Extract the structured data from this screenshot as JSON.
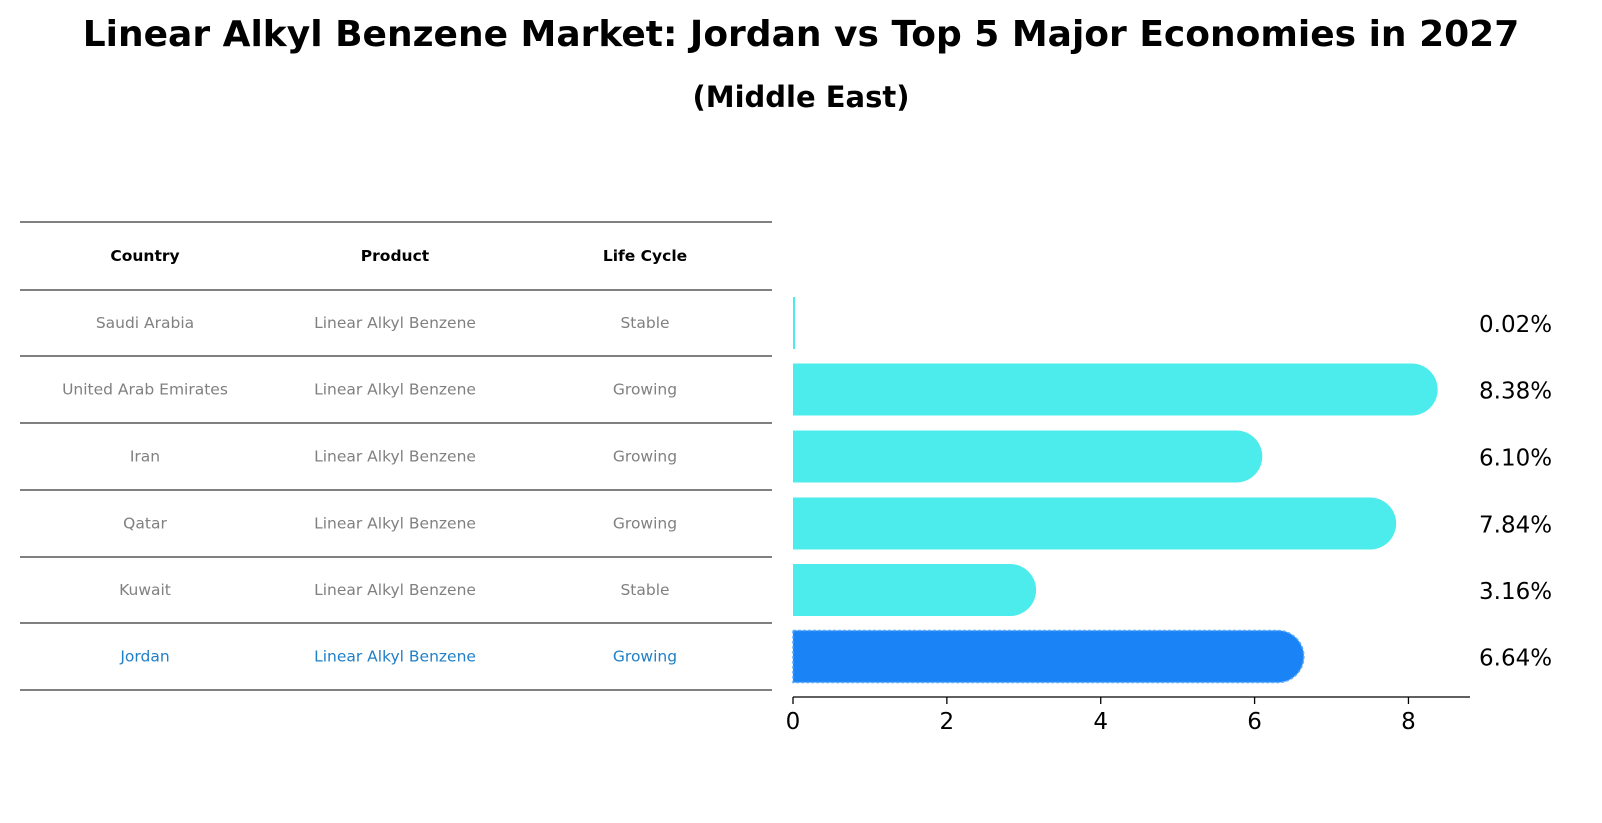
{
  "title": "Linear Alkyl Benzene Market: Jordan vs Top 5 Major Economies in 2027",
  "subtitle": "(Middle East)",
  "table": {
    "headers": [
      "Country",
      "Product",
      "Life Cycle"
    ],
    "rows": [
      {
        "country": "Saudi Arabia",
        "product": "Linear Alkyl Benzene",
        "life_cycle": "Stable"
      },
      {
        "country": "United Arab Emirates",
        "product": "Linear Alkyl Benzene",
        "life_cycle": "Growing"
      },
      {
        "country": "Iran",
        "product": "Linear Alkyl Benzene",
        "life_cycle": "Growing"
      },
      {
        "country": "Qatar",
        "product": "Linear Alkyl Benzene",
        "life_cycle": "Growing"
      },
      {
        "country": "Kuwait",
        "product": "Linear Alkyl Benzene",
        "life_cycle": "Stable"
      },
      {
        "country": "Jordan",
        "product": "Linear Alkyl Benzene",
        "life_cycle": "Growing"
      }
    ],
    "highlight_country": "Jordan"
  },
  "chart_data": {
    "type": "bar",
    "orientation": "horizontal",
    "categories": [
      "Saudi Arabia",
      "United Arab Emirates",
      "Iran",
      "Qatar",
      "Kuwait",
      "Jordan"
    ],
    "values": [
      0.02,
      8.38,
      6.1,
      7.84,
      3.16,
      6.64
    ],
    "value_labels": [
      "0.02%",
      "8.38%",
      "6.10%",
      "7.84%",
      "3.16%",
      "6.64%"
    ],
    "xlim": [
      0,
      8.8
    ],
    "xticks": [
      0,
      2,
      4,
      6,
      8
    ],
    "grid": false,
    "colors": {
      "default": "#4beceb",
      "highlight": "#1a83f5"
    },
    "highlight_category": "Jordan"
  }
}
